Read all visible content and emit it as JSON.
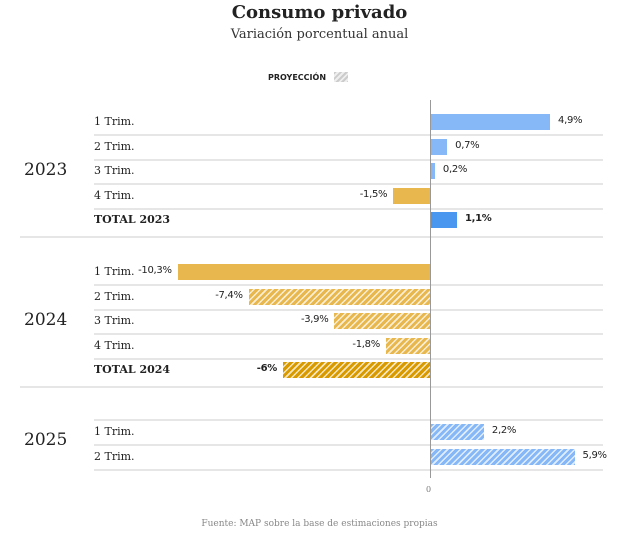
{
  "chart_data": {
    "type": "bar",
    "orientation": "horizontal",
    "title": "Consumo privado",
    "subtitle": "Variación porcentual anual",
    "legend": {
      "label": "PROYECCIÓN",
      "pattern": "hatched",
      "position": "top-center"
    },
    "zero_label": "0",
    "source": "Fuente: MAP sobre la base de estimaciones propias",
    "colors": {
      "positive": "#86b8f7",
      "positive_total": "#4a97f0",
      "negative": "#e8b84f",
      "negative_total": "#d99a00"
    },
    "groups": [
      {
        "year": "2023",
        "rows": [
          {
            "label": "1 Trim.",
            "value": 4.9,
            "value_label": "4,9%",
            "projection": false,
            "total": false
          },
          {
            "label": "2 Trim.",
            "value": 0.7,
            "value_label": "0,7%",
            "projection": false,
            "total": false
          },
          {
            "label": "3 Trim.",
            "value": 0.2,
            "value_label": "0,2%",
            "projection": false,
            "total": false
          },
          {
            "label": "4 Trim.",
            "value": -1.5,
            "value_label": "-1,5%",
            "projection": false,
            "total": false
          },
          {
            "label": "TOTAL 2023",
            "value": 1.1,
            "value_label": "1,1%",
            "projection": false,
            "total": true
          }
        ]
      },
      {
        "year": "2024",
        "rows": [
          {
            "label": "1 Trim.",
            "value": -10.3,
            "value_label": "-10,3%",
            "projection": false,
            "total": false
          },
          {
            "label": "2 Trim.",
            "value": -7.4,
            "value_label": "-7,4%",
            "projection": true,
            "total": false
          },
          {
            "label": "3 Trim.",
            "value": -3.9,
            "value_label": "-3,9%",
            "projection": true,
            "total": false
          },
          {
            "label": "4 Trim.",
            "value": -1.8,
            "value_label": "-1,8%",
            "projection": true,
            "total": false
          },
          {
            "label": "TOTAL 2024",
            "value": -6,
            "value_label": "-6%",
            "projection": true,
            "total": true
          }
        ]
      },
      {
        "year": "2025",
        "rows": [
          {
            "label": "1 Trim.",
            "value": 2.2,
            "value_label": "2,2%",
            "projection": true,
            "total": false
          },
          {
            "label": "2 Trim.",
            "value": 5.9,
            "value_label": "5,9%",
            "projection": true,
            "total": false
          }
        ]
      }
    ]
  }
}
